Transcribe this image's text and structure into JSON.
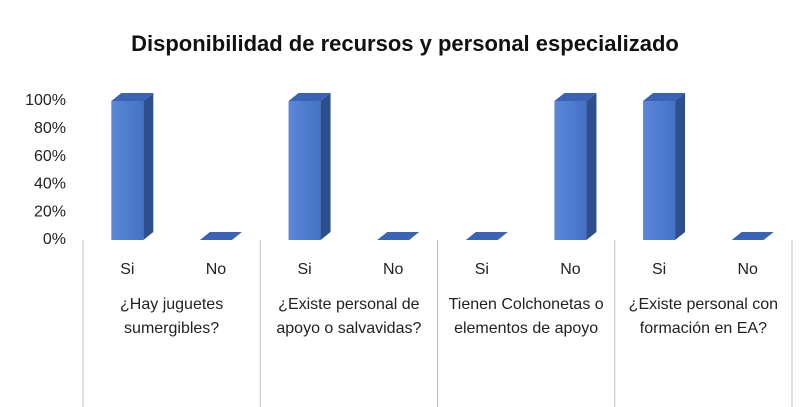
{
  "chart_data": {
    "type": "bar3d",
    "title": "Disponibilidad de recursos y personal especializado",
    "categories": [
      "Si",
      "No",
      "Si",
      "No",
      "Si",
      "No",
      "Si",
      "No"
    ],
    "groups": [
      "¿Hay juguetes sumergibles?",
      "¿Existe personal de apoyo o salvavidas?",
      "Tienen Colchonetas o elementos de apoyo",
      "¿Existe personal con formación en EA?"
    ],
    "values": [
      100,
      0,
      100,
      0,
      0,
      100,
      100,
      0
    ],
    "color": "#4472c4",
    "ylim": [
      0,
      100
    ],
    "yticks": [
      {
        "value": 0,
        "label": "0%"
      },
      {
        "value": 20,
        "label": "20%"
      },
      {
        "value": 40,
        "label": "40%"
      },
      {
        "value": 60,
        "label": "60%"
      },
      {
        "value": 80,
        "label": "80%"
      },
      {
        "value": 100,
        "label": "100%"
      }
    ],
    "grid": false
  }
}
